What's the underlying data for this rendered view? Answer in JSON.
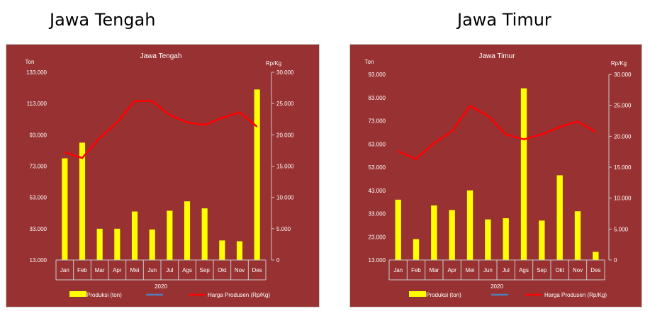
{
  "headings": [
    "Jawa Tengah",
    "Jawa Timur"
  ],
  "colors": {
    "background": "#983232",
    "bars": "#ffff00",
    "line": "#ff0000",
    "legend_mid": "#4f81bd",
    "text": "#ffffff",
    "border": "#c9c9c9"
  },
  "chart_data": [
    {
      "type": "bar+line",
      "title": "Jawa Tengah",
      "y_left_label": "Ton",
      "y_right_label": "Rp/Kg",
      "x_label": "2020",
      "categories": [
        "Jan",
        "Feb",
        "Mar",
        "Apr",
        "Mei",
        "Jun",
        "Jul",
        "Ags",
        "Sep",
        "Okt",
        "Nov",
        "Des"
      ],
      "y_left_ticks": [
        "133.000",
        "113.000",
        "93.000",
        "73.000",
        "53.000",
        "33.000",
        "13.000"
      ],
      "y_left_lim": [
        13000,
        133000
      ],
      "y_right_ticks": [
        "30.000",
        "25.000",
        "20.000",
        "15.000",
        "10.000",
        "5.000",
        "0"
      ],
      "y_right_lim": [
        0,
        30000
      ],
      "series": [
        {
          "name": "Produksi (ton)",
          "kind": "bar",
          "axis": "left",
          "values": [
            78000,
            88000,
            33000,
            33000,
            44000,
            32500,
            44500,
            50500,
            46000,
            25500,
            25000,
            122000
          ]
        },
        {
          "name": "",
          "kind": "legend-only"
        },
        {
          "name": "Harga Produsen (Rp/Kg)",
          "kind": "line",
          "axis": "right",
          "values": [
            17200,
            16300,
            19500,
            22000,
            25400,
            25400,
            23200,
            22000,
            21600,
            22700,
            23600,
            21300
          ]
        }
      ]
    },
    {
      "type": "bar+line",
      "title": "Jawa Timur",
      "y_left_label": "Ton",
      "y_right_label": "Rp/Kg",
      "x_label": "2020",
      "categories": [
        "Jan",
        "Feb",
        "Mar",
        "Apr",
        "Mei",
        "Jun",
        "Jul",
        "Ags",
        "Sep",
        "Okt",
        "Nov",
        "Des"
      ],
      "y_left_ticks": [
        "93.000",
        "83.000",
        "73.000",
        "63.000",
        "53.000",
        "43.000",
        "33.000",
        "23.000",
        "13.000"
      ],
      "y_left_lim": [
        13000,
        93000
      ],
      "y_right_ticks": [
        "30.000",
        "25.000",
        "20.000",
        "15.000",
        "10.000",
        "5.000",
        "0"
      ],
      "y_right_lim": [
        0,
        30000
      ],
      "series": [
        {
          "name": "Produksi (ton)",
          "kind": "bar",
          "axis": "left",
          "values": [
            39000,
            22000,
            36500,
            34500,
            43000,
            30500,
            31000,
            87000,
            30000,
            49500,
            34000,
            16500
          ]
        },
        {
          "name": "",
          "kind": "legend-only"
        },
        {
          "name": "Harga Produsen (Rp/Kg)",
          "kind": "line",
          "axis": "right",
          "values": [
            17600,
            16300,
            18900,
            20800,
            24900,
            23300,
            20300,
            19500,
            20300,
            21500,
            22400,
            20700
          ]
        }
      ]
    }
  ]
}
